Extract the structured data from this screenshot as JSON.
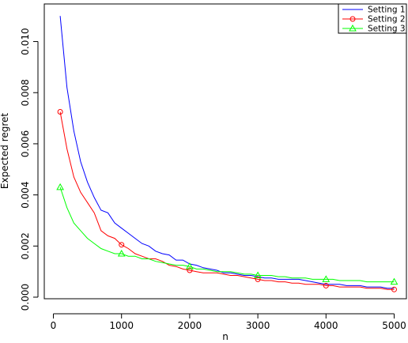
{
  "chart_data": {
    "type": "line",
    "title": "",
    "xlabel": "n",
    "ylabel": "Expected regret",
    "xlim": [
      0,
      5000
    ],
    "ylim": [
      0,
      0.011
    ],
    "x_ticks": [
      {
        "value": 0,
        "label": "0"
      },
      {
        "value": 1000,
        "label": "1000"
      },
      {
        "value": 2000,
        "label": "2000"
      },
      {
        "value": 3000,
        "label": "3000"
      },
      {
        "value": 4000,
        "label": "4000"
      },
      {
        "value": 5000,
        "label": "5000"
      }
    ],
    "y_ticks": [
      {
        "value": 0.0,
        "label": "0.000"
      },
      {
        "value": 0.002,
        "label": "0.002"
      },
      {
        "value": 0.004,
        "label": "0.004"
      },
      {
        "value": 0.006,
        "label": "0.006"
      },
      {
        "value": 0.008,
        "label": "0.008"
      },
      {
        "value": 0.01,
        "label": "0.010"
      }
    ],
    "grid": false,
    "legend_position": "top-right",
    "x": [
      100,
      200,
      300,
      400,
      500,
      600,
      700,
      800,
      900,
      1000,
      1100,
      1200,
      1300,
      1400,
      1500,
      1600,
      1700,
      1800,
      1900,
      2000,
      2100,
      2200,
      2300,
      2400,
      2500,
      2600,
      2700,
      2800,
      2900,
      3000,
      3100,
      3200,
      3300,
      3400,
      3500,
      3600,
      3700,
      3800,
      3900,
      4000,
      4100,
      4200,
      4300,
      4400,
      4500,
      4600,
      4700,
      4800,
      4900,
      5000
    ],
    "series": [
      {
        "name": "Setting 1",
        "color": "#0000ff",
        "marker": "none",
        "values": [
          0.011,
          0.0082,
          0.0065,
          0.0053,
          0.0045,
          0.0039,
          0.0034,
          0.0033,
          0.0029,
          0.0027,
          0.0025,
          0.0023,
          0.0021,
          0.002,
          0.0018,
          0.0017,
          0.00165,
          0.00145,
          0.00145,
          0.0013,
          0.00125,
          0.00115,
          0.0011,
          0.00105,
          0.00095,
          0.00095,
          0.0009,
          0.00085,
          0.00085,
          0.0008,
          0.00075,
          0.00075,
          0.0007,
          0.0007,
          0.0007,
          0.0007,
          0.00065,
          0.0006,
          0.00055,
          0.0005,
          0.0005,
          0.0005,
          0.00045,
          0.00045,
          0.00045,
          0.0004,
          0.0004,
          0.0004,
          0.00035,
          0.00035
        ]
      },
      {
        "name": "Setting 2",
        "color": "#ff0000",
        "marker": "circle",
        "marker_x": [
          100,
          1000,
          2000,
          3000,
          4000,
          5000
        ],
        "values": [
          0.00725,
          0.0058,
          0.0047,
          0.0041,
          0.0037,
          0.0033,
          0.0026,
          0.0024,
          0.0023,
          0.00205,
          0.0019,
          0.0017,
          0.0016,
          0.0015,
          0.0015,
          0.0014,
          0.00125,
          0.0012,
          0.0011,
          0.00105,
          0.001,
          0.00095,
          0.00095,
          0.00095,
          0.0009,
          0.00085,
          0.00085,
          0.0008,
          0.00075,
          0.0007,
          0.00065,
          0.00065,
          0.0006,
          0.0006,
          0.00055,
          0.00055,
          0.0005,
          0.0005,
          0.0005,
          0.00045,
          0.00045,
          0.0004,
          0.0004,
          0.0004,
          0.0004,
          0.00035,
          0.00035,
          0.00035,
          0.0003,
          0.0003
        ]
      },
      {
        "name": "Setting 3",
        "color": "#00ff00",
        "marker": "triangle",
        "marker_x": [
          100,
          1000,
          2000,
          3000,
          4000,
          5000
        ],
        "values": [
          0.0043,
          0.0035,
          0.0029,
          0.0026,
          0.0023,
          0.0021,
          0.0019,
          0.0018,
          0.0017,
          0.0017,
          0.0016,
          0.0016,
          0.0015,
          0.0015,
          0.0014,
          0.00135,
          0.0013,
          0.00125,
          0.00125,
          0.0012,
          0.0011,
          0.0011,
          0.00105,
          0.001,
          0.001,
          0.001,
          0.00095,
          0.0009,
          0.0009,
          0.00085,
          0.00085,
          0.00085,
          0.0008,
          0.0008,
          0.00075,
          0.00075,
          0.00075,
          0.0007,
          0.0007,
          0.0007,
          0.0007,
          0.00065,
          0.00065,
          0.00065,
          0.00065,
          0.0006,
          0.0006,
          0.0006,
          0.0006,
          0.0006
        ]
      }
    ]
  }
}
